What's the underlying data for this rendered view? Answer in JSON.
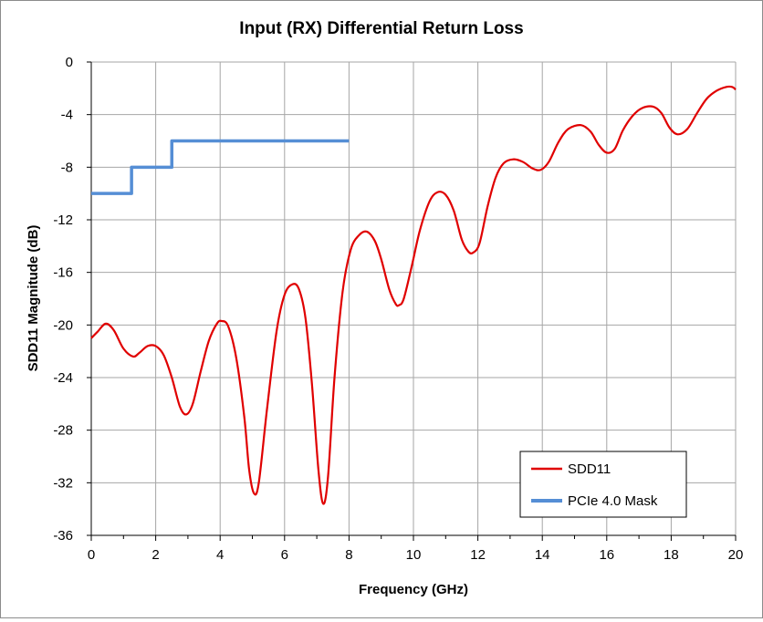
{
  "chart_data": {
    "type": "line",
    "title": "Input (RX) Differential Return Loss",
    "xlabel": "Frequency (GHz)",
    "ylabel": "SDD11 Magnitude (dB)",
    "xlim": [
      0,
      20
    ],
    "ylim": [
      -36,
      0
    ],
    "x_ticks": [
      "0",
      "2",
      "4",
      "6",
      "8",
      "10",
      "12",
      "14",
      "16",
      "18",
      "20"
    ],
    "y_ticks": [
      "0",
      "-4",
      "-8",
      "-12",
      "-16",
      "-20",
      "-24",
      "-28",
      "-32",
      "-36"
    ],
    "x_tick_values": [
      0,
      2,
      4,
      6,
      8,
      10,
      12,
      14,
      16,
      18,
      20
    ],
    "y_tick_values": [
      0,
      -4,
      -8,
      -12,
      -16,
      -20,
      -24,
      -28,
      -32,
      -36
    ],
    "grid": true,
    "legend_position": "bottom-right",
    "series": [
      {
        "name": "SDD11",
        "color": "#e00000",
        "x": [
          0,
          0.2,
          0.45,
          0.7,
          1.0,
          1.3,
          1.5,
          1.75,
          2.0,
          2.25,
          2.5,
          2.75,
          2.95,
          3.15,
          3.4,
          3.65,
          3.9,
          4.05,
          4.25,
          4.5,
          4.75,
          4.9,
          5.05,
          5.2,
          5.45,
          5.75,
          6.0,
          6.25,
          6.45,
          6.65,
          6.85,
          7.05,
          7.2,
          7.35,
          7.55,
          7.8,
          8.05,
          8.3,
          8.55,
          8.8,
          9.0,
          9.25,
          9.45,
          9.55,
          9.7,
          9.95,
          10.2,
          10.5,
          10.75,
          11.0,
          11.25,
          11.5,
          11.7,
          11.85,
          12.05,
          12.3,
          12.55,
          12.8,
          13.1,
          13.4,
          13.7,
          13.95,
          14.2,
          14.5,
          14.8,
          15.2,
          15.5,
          15.75,
          16.0,
          16.25,
          16.5,
          16.8,
          17.1,
          17.45,
          17.7,
          17.95,
          18.2,
          18.5,
          18.8,
          19.1,
          19.4,
          19.7,
          19.9,
          20.0
        ],
        "y": [
          -21,
          -20.5,
          -19.9,
          -20.4,
          -21.8,
          -22.4,
          -22.1,
          -21.6,
          -21.6,
          -22.3,
          -24.0,
          -26.2,
          -26.8,
          -26.0,
          -23.5,
          -21.2,
          -19.9,
          -19.7,
          -20.1,
          -22.5,
          -27.0,
          -31.0,
          -32.8,
          -32.0,
          -26.5,
          -20.5,
          -17.7,
          -16.9,
          -17.3,
          -19.5,
          -24.5,
          -31.0,
          -33.6,
          -31.5,
          -24.0,
          -17.5,
          -14.3,
          -13.2,
          -12.9,
          -13.6,
          -15.0,
          -17.3,
          -18.4,
          -18.5,
          -18.0,
          -15.5,
          -12.8,
          -10.6,
          -9.9,
          -10.1,
          -11.3,
          -13.5,
          -14.4,
          -14.5,
          -13.8,
          -11.0,
          -8.8,
          -7.7,
          -7.4,
          -7.6,
          -8.1,
          -8.2,
          -7.6,
          -6.1,
          -5.1,
          -4.8,
          -5.3,
          -6.3,
          -6.9,
          -6.6,
          -5.2,
          -4.1,
          -3.5,
          -3.4,
          -3.9,
          -5.0,
          -5.5,
          -5.1,
          -3.9,
          -2.8,
          -2.2,
          -1.9,
          -1.9,
          -2.1
        ]
      },
      {
        "name": "PCIe 4.0 Mask",
        "color": "#558ed5",
        "x": [
          0,
          1.25,
          1.25,
          2.5,
          2.5,
          8.0
        ],
        "y": [
          -10,
          -10,
          -8,
          -8,
          -6,
          -6
        ]
      }
    ]
  }
}
